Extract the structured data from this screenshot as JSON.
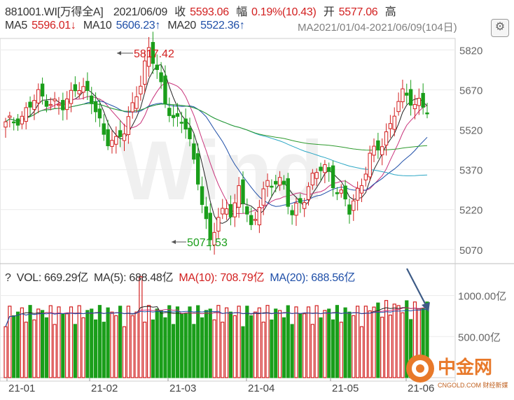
{
  "header": {
    "code": "881001.WI[万得全A]",
    "date": "2021/06/09",
    "close_label": "收",
    "close_value": "5593.06",
    "change_label": "幅",
    "change_value": "0.19%(10.43)",
    "open_label": "开",
    "open_value": "5577.06",
    "high_label": "高"
  },
  "ma_row": {
    "ma5_label": "MA5",
    "ma5_value": "5596.01↓",
    "ma10_label": "MA10",
    "ma10_value": "5606.23↑",
    "ma20_label": "MA20",
    "ma20_value": "5522.36↑",
    "overlay_text": "MA2021/01/04-2021/06/09(104日)"
  },
  "price_axis": {
    "ticks": [
      "5820",
      "5670",
      "5520",
      "5370",
      "5220",
      "5070"
    ]
  },
  "annotations": {
    "high": "5817.42",
    "low": "5071.53"
  },
  "volume_row": {
    "question": "?",
    "vol_label": "VOL:",
    "vol_value": "669.29亿",
    "ma5": "MA(5): 688.48亿",
    "ma10": "MA(10): 708.79亿",
    "ma20": "MA(20): 688.56亿"
  },
  "volume_axis": {
    "ticks": [
      "1000.00亿",
      "500.00亿"
    ]
  },
  "x_axis": {
    "labels": [
      "21-01",
      "21-02",
      "21-03",
      "21-04",
      "21-05",
      "21-06"
    ]
  },
  "watermark": {
    "logo_text": "中金网",
    "logo_sub": "CNGOLD.COM 财经新媒体",
    "bg_text": "Wind"
  },
  "colors": {
    "up": "#d21f1f",
    "down": "#1a9e1a",
    "ma5": "#222222",
    "ma10": "#c8327a",
    "ma20": "#1f4fa8",
    "ma60": "#2e9a2e",
    "ma120": "#2aa6c4",
    "arrow": "#3d5b86",
    "logo": "#e8792a"
  },
  "chart_data": {
    "type": "candlestick",
    "ylim": [
      5030,
      5850
    ],
    "high_marker": 5817.42,
    "low_marker": 5071.53,
    "last_close": 5593.06,
    "volume_ylim": [
      0,
      1150
    ]
  }
}
